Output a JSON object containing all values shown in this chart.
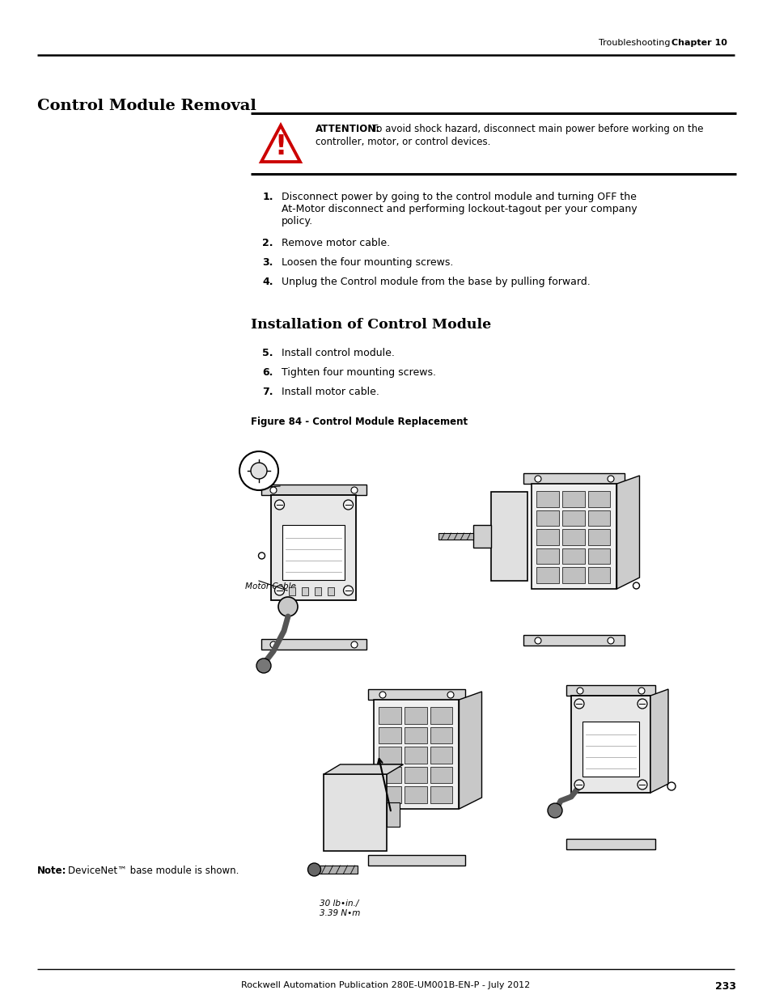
{
  "header_label": "Troubleshooting",
  "header_chapter": "Chapter 10",
  "section1_title": "Control Module Removal",
  "attention_bold": "ATTENTION:",
  "attention_line1": "To avoid shock hazard, disconnect main power before working on the",
  "attention_line2": "controller, motor, or control devices.",
  "step1_num": "1.",
  "step1_line1": "Disconnect power by going to the control module and turning OFF the",
  "step1_line2": "At-Motor disconnect and performing lockout-tagout per your company",
  "step1_line3": "policy.",
  "step2_num": "2.",
  "step2_text": "Remove motor cable.",
  "step3_num": "3.",
  "step3_text": "Loosen the four mounting screws.",
  "step4_num": "4.",
  "step4_text": "Unplug the Control module from the base by pulling forward.",
  "section2_title": "Installation of Control Module",
  "step5_num": "5.",
  "step5_text": "Install control module.",
  "step6_num": "6.",
  "step6_text": "Tighten four mounting screws.",
  "step7_num": "7.",
  "step7_text": "Install motor cable.",
  "figure_caption": "Figure 84 - Control Module Replacement",
  "motor_cable_label": "Motor Cable",
  "torque_line1": "30 lb•in./",
  "torque_line2": "3.39 N•m",
  "note_bold": "Note:",
  "note_text": "DeviceNet™ base module is shown.",
  "footer_text": "Rockwell Automation Publication 280E-UM001B-EN-P - July 2012",
  "page_number": "233",
  "bg_color": "#ffffff"
}
